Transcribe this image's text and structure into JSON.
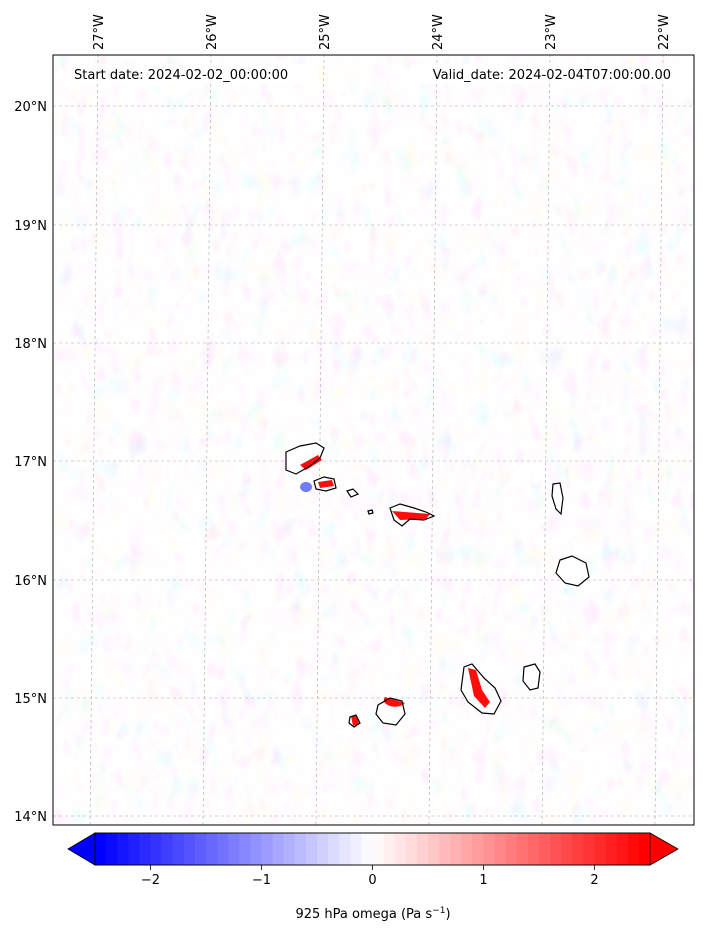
{
  "header": {
    "start_date": "Start date: 2024-02-02_00:00:00",
    "valid_date": "Valid_date: 2024-02-04T07:00:00.00"
  },
  "axes": {
    "lon_ticks": [
      "27°W",
      "26°W",
      "25°W",
      "24°W",
      "23°W",
      "22°W"
    ],
    "lat_ticks": [
      "20°N",
      "19°N",
      "18°N",
      "17°N",
      "16°N",
      "15°N",
      "14°N"
    ]
  },
  "colorbar": {
    "tick_labels": [
      "−2",
      "−1",
      "0",
      "1",
      "2"
    ],
    "ticks": [
      -2,
      -1,
      0,
      1,
      2
    ],
    "range": [
      -2.5,
      2.5
    ],
    "label": "925 hPa omega (Pa s",
    "label_sup": "−1",
    "label_end": ")",
    "colormap": "bwr",
    "color_min": "#0000ff",
    "color_mid": "#ffffff",
    "color_max": "#ff0000"
  },
  "map": {
    "extent_lon": [
      -27.4,
      -21.8
    ],
    "extent_lat": [
      13.95,
      20.45
    ],
    "gridlines": "dashed",
    "coastline_color": "#000000",
    "islands": [
      "Santo Antão",
      "São Vicente",
      "Santa Luzia",
      "São Nicolau",
      "Sal",
      "Boa Vista",
      "Maio",
      "Santiago",
      "Fogo",
      "Brava"
    ]
  }
}
